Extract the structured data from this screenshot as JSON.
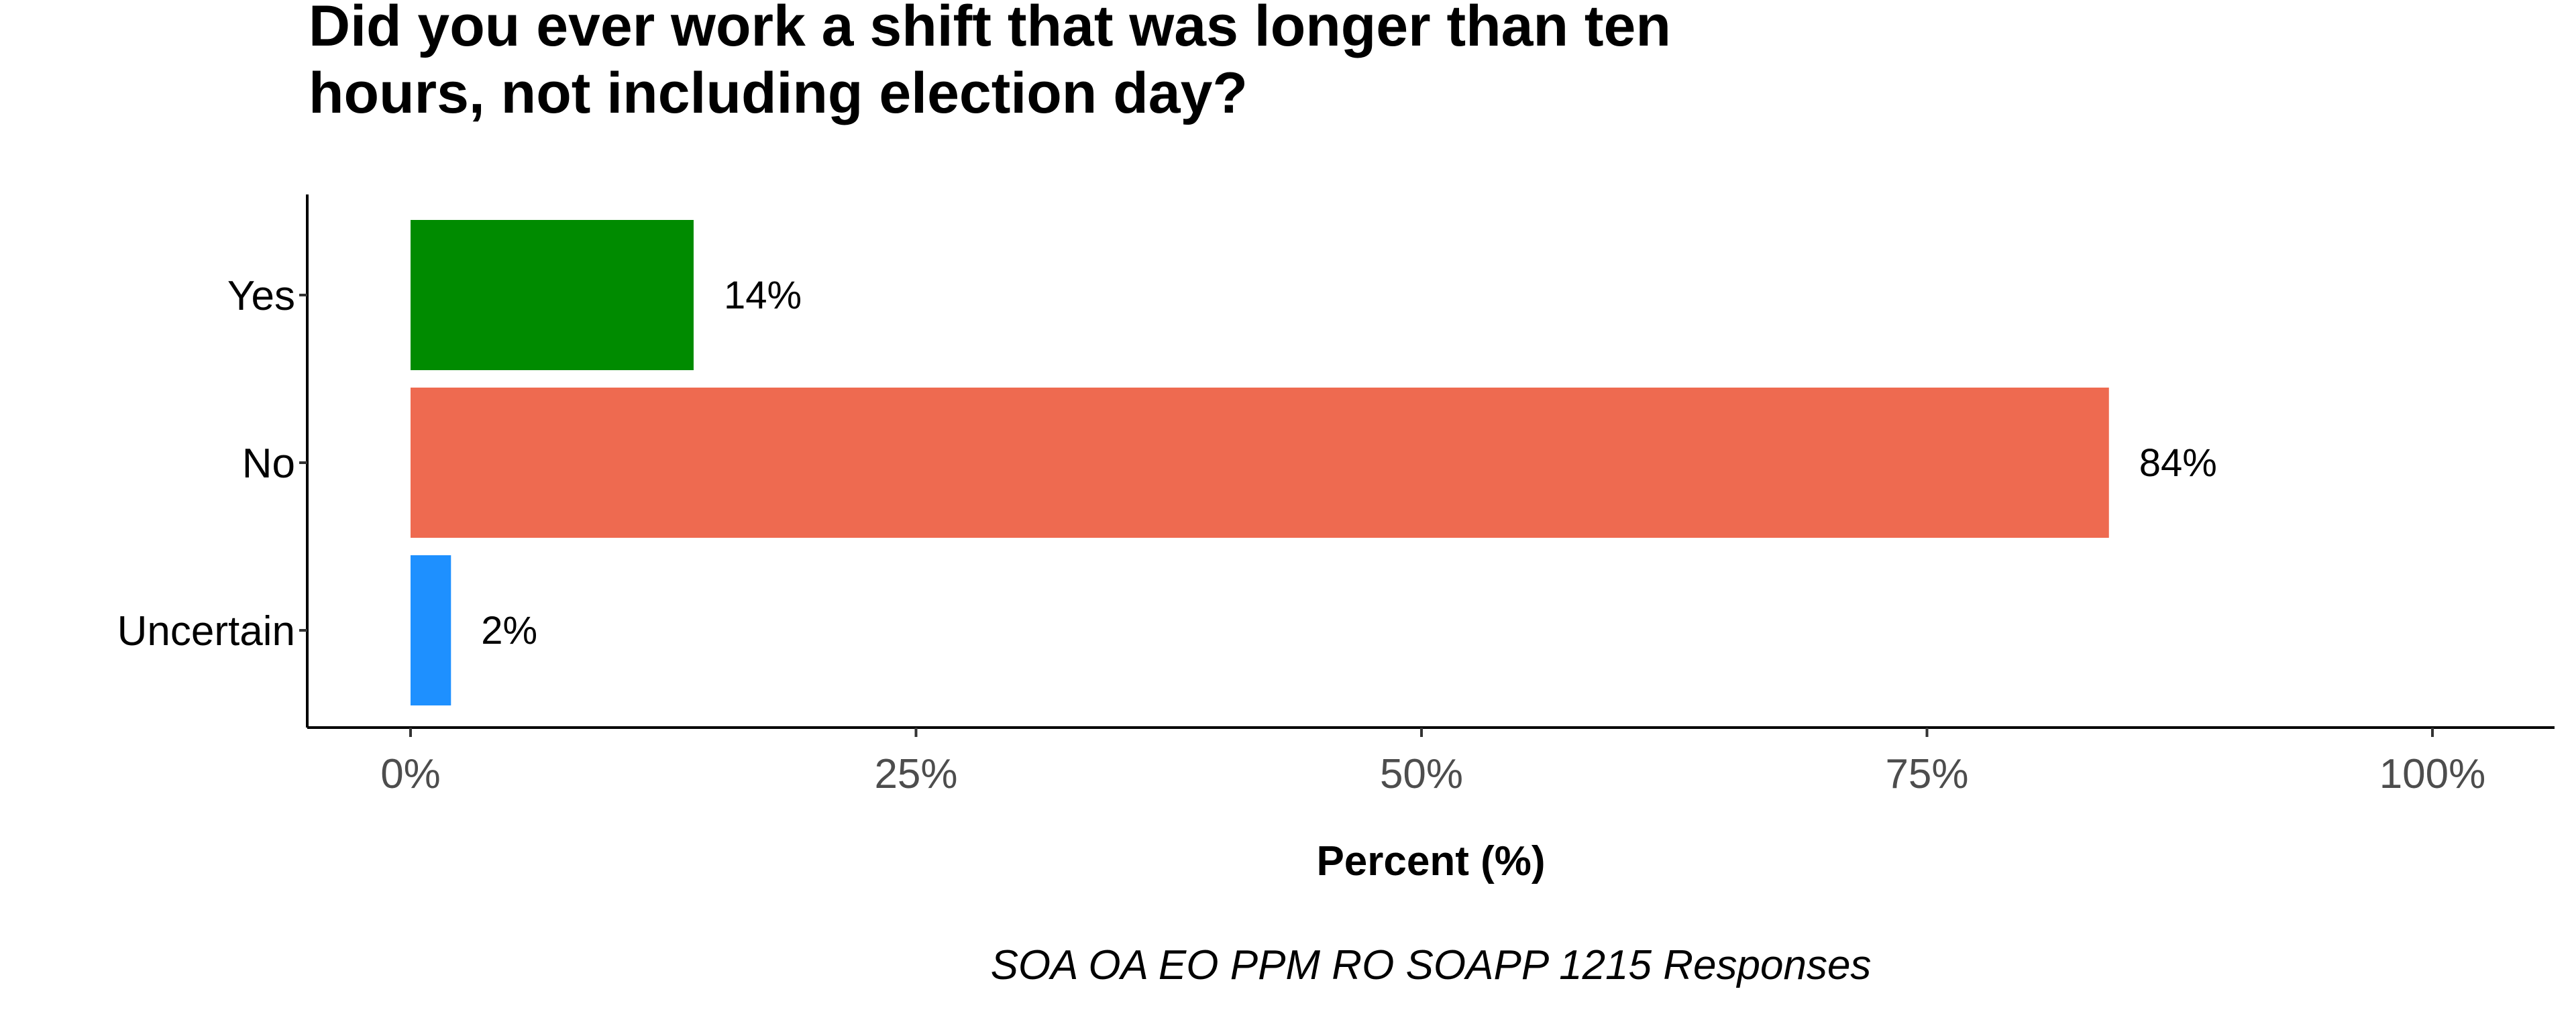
{
  "chart_data": {
    "type": "bar",
    "orientation": "horizontal",
    "title_lines": [
      "Did you ever work a shift that was longer than ten",
      "hours, not including election day?"
    ],
    "categories": [
      "Yes",
      "No",
      "Uncertain"
    ],
    "values": [
      14,
      84,
      2
    ],
    "value_labels": [
      "14%",
      "84%",
      "2%"
    ],
    "colors": [
      "#008B00",
      "#EE6A50",
      "#1E90FF"
    ],
    "xlabel": "Percent (%)",
    "ylabel": "",
    "xlim": [
      0,
      100
    ],
    "x_ticks": [
      0,
      25,
      50,
      75,
      100
    ],
    "x_tick_labels": [
      "0%",
      "25%",
      "50%",
      "75%",
      "100%"
    ],
    "caption": "SOA OA EO PPM RO SOAPP 1215 Responses",
    "grid": false,
    "legend": "none"
  }
}
